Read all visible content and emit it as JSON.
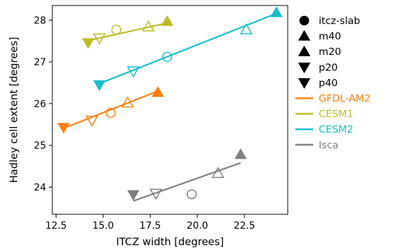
{
  "chart_data": {
    "type": "scatter",
    "xlabel": "ITCZ width [degrees]",
    "ylabel": "Hadley cell extent [degrees]",
    "xlim": [
      12.3,
      24.8
    ],
    "ylim": [
      23.35,
      28.35
    ],
    "xticks": [
      12.5,
      15.0,
      17.5,
      20.0,
      22.5
    ],
    "xtick_labels": [
      "12.5",
      "15.0",
      "17.5",
      "20.0",
      "22.5"
    ],
    "yticks": [
      24,
      25,
      26,
      27,
      28
    ],
    "ytick_labels": [
      "24",
      "25",
      "26",
      "27",
      "28"
    ],
    "grid": false,
    "legend_position": "outside-right",
    "markers": [
      {
        "name": "itcz-slab",
        "marker": "circle"
      },
      {
        "name": "m40",
        "marker": "triangle-up"
      },
      {
        "name": "m20",
        "marker": "triangle-up"
      },
      {
        "name": "p20",
        "marker": "triangle-down"
      },
      {
        "name": "p40",
        "marker": "triangle-down"
      }
    ],
    "series": [
      {
        "name": "GFDL-AM2",
        "color": "#ff7f0e",
        "points": [
          {
            "case": "itcz-slab",
            "x": 15.4,
            "y": 25.78
          },
          {
            "case": "m40",
            "x": 17.9,
            "y": 26.27
          },
          {
            "case": "m20",
            "x": 16.3,
            "y": 26.02
          },
          {
            "case": "p20",
            "x": 14.4,
            "y": 25.6
          },
          {
            "case": "p40",
            "x": 12.9,
            "y": 25.43
          }
        ],
        "fit": {
          "x": [
            12.9,
            17.9
          ],
          "y": [
            25.41,
            26.3
          ]
        }
      },
      {
        "name": "CESM1",
        "color": "#bcbd22",
        "points": [
          {
            "case": "itcz-slab",
            "x": 15.7,
            "y": 27.77
          },
          {
            "case": "m40",
            "x": 18.4,
            "y": 27.97
          },
          {
            "case": "m20",
            "x": 17.4,
            "y": 27.84
          },
          {
            "case": "p20",
            "x": 14.8,
            "y": 27.57
          },
          {
            "case": "p40",
            "x": 14.2,
            "y": 27.46
          }
        ],
        "fit": {
          "x": [
            14.2,
            18.4
          ],
          "y": [
            27.51,
            27.93
          ]
        }
      },
      {
        "name": "CESM2",
        "color": "#17becf",
        "points": [
          {
            "case": "itcz-slab",
            "x": 18.4,
            "y": 27.12
          },
          {
            "case": "m40",
            "x": 24.2,
            "y": 28.18
          },
          {
            "case": "m20",
            "x": 22.6,
            "y": 27.77
          },
          {
            "case": "p20",
            "x": 16.6,
            "y": 26.78
          },
          {
            "case": "p40",
            "x": 14.8,
            "y": 26.45
          }
        ],
        "fit": {
          "x": [
            14.8,
            24.2
          ],
          "y": [
            26.48,
            28.16
          ]
        }
      },
      {
        "name": "Isca",
        "color": "#7f7f7f",
        "points": [
          {
            "case": "itcz-slab",
            "x": 19.7,
            "y": 23.83
          },
          {
            "case": "m40",
            "x": 22.3,
            "y": 24.78
          },
          {
            "case": "m20",
            "x": 21.1,
            "y": 24.33
          },
          {
            "case": "p20",
            "x": 17.8,
            "y": 23.85
          },
          {
            "case": "p40",
            "x": 16.6,
            "y": 23.82
          }
        ],
        "fit": {
          "x": [
            16.6,
            22.3
          ],
          "y": [
            23.67,
            24.58
          ]
        }
      }
    ]
  }
}
